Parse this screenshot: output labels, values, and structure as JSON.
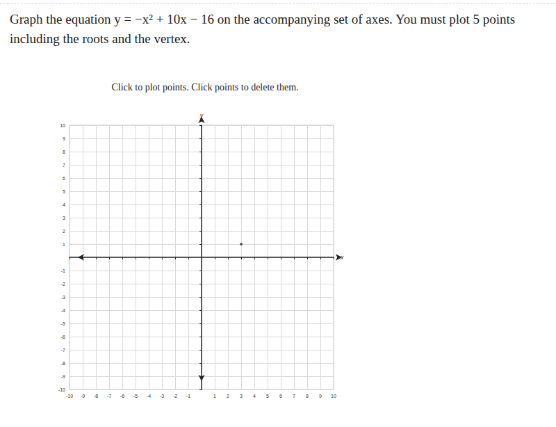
{
  "chart_data": {
    "type": "scatter",
    "title": "Graph the equation y = −x² + 10x − 16 on the accompanying set of axes. You must plot 5 points including the roots and the vertex.",
    "subtitle": "Click to plot points. Click points to delete them.",
    "xlabel": "x",
    "ylabel": "y",
    "x": [
      3
    ],
    "values": [
      1
    ],
    "color": "#333333",
    "marker": "circle",
    "xlim": [
      -10,
      10
    ],
    "ylim": [
      -10,
      10
    ],
    "xticks": [
      -10,
      -9,
      -8,
      -7,
      -6,
      -5,
      -4,
      -3,
      -2,
      -1,
      1,
      2,
      3,
      4,
      5,
      6,
      7,
      8,
      9,
      10
    ],
    "yticks": [
      -10,
      -9,
      -8,
      -7,
      -6,
      -5,
      -4,
      -3,
      -2,
      -1,
      1,
      2,
      3,
      4,
      5,
      6,
      7,
      8,
      9,
      10
    ],
    "grid": true
  }
}
